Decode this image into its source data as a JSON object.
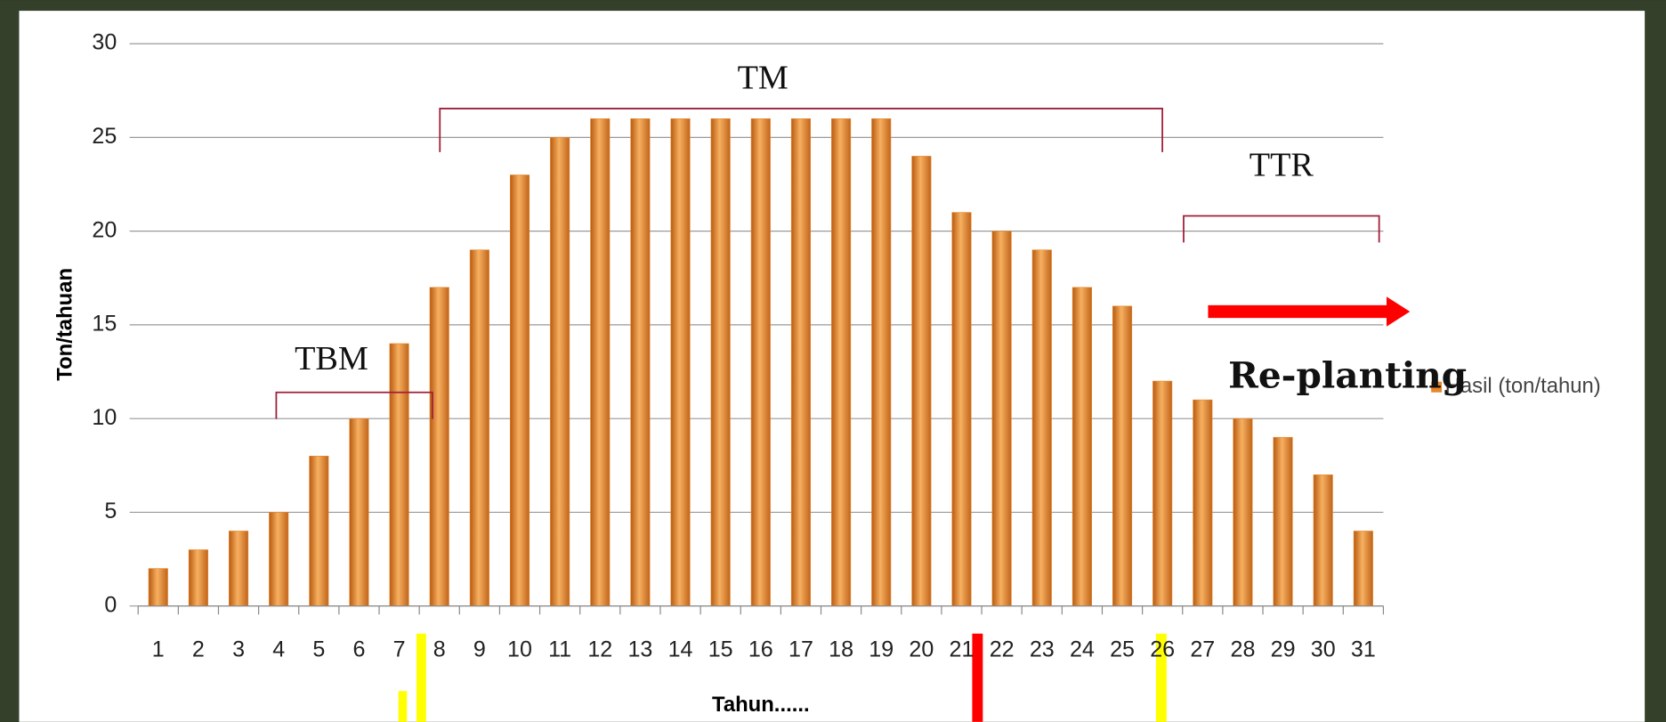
{
  "chart_data": {
    "type": "bar",
    "y_label": "Ton/tahuan",
    "x_label": "Tahun......",
    "categories": [
      "1",
      "2",
      "3",
      "4",
      "5",
      "6",
      "7",
      "8",
      "9",
      "10",
      "11",
      "12",
      "13",
      "14",
      "15",
      "16",
      "17",
      "18",
      "19",
      "20",
      "21",
      "22",
      "23",
      "24",
      "25",
      "26",
      "27",
      "28",
      "29",
      "30",
      "31"
    ],
    "series": [
      {
        "name": "Hasil (ton/tahun)",
        "color": "#e8862a",
        "values": [
          2,
          3,
          4,
          5,
          8,
          10,
          14,
          17,
          19,
          23,
          25,
          26,
          26,
          26,
          26,
          26,
          26,
          26,
          26,
          24,
          21,
          20,
          19,
          17,
          16,
          12,
          11,
          10,
          9,
          7,
          4
        ]
      }
    ],
    "ylim": [
      0,
      30
    ],
    "yticks": [
      0,
      5,
      10,
      15,
      20,
      25,
      30
    ],
    "grid": true,
    "annotations": [
      "TBM",
      "TM",
      "TTR",
      "Re-planting"
    ]
  }
}
